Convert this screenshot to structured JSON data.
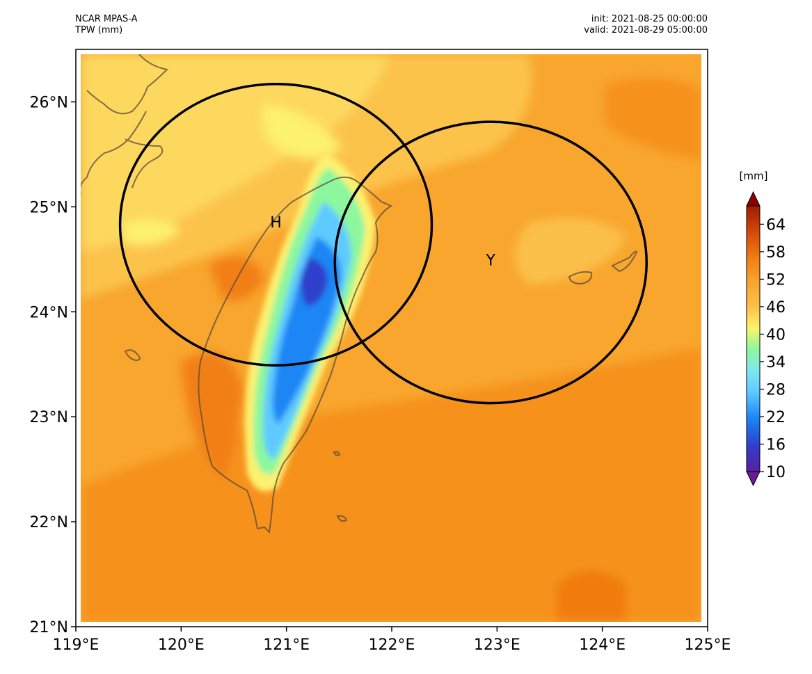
{
  "header": {
    "model": "NCAR MPAS-A",
    "variable": "TPW (mm)",
    "init": "init: 2021-08-25 00:00:00",
    "valid": "valid: 2021-08-29 05:00:00"
  },
  "chart_data": {
    "type": "heatmap",
    "projection": "plate-carree",
    "x_ticks": [
      "119°E",
      "120°E",
      "121°E",
      "122°E",
      "123°E",
      "124°E",
      "125°E"
    ],
    "y_ticks": [
      "26°N",
      "25°N",
      "24°N",
      "23°N",
      "22°N",
      "21°N"
    ],
    "xlim": [
      119,
      125
    ],
    "ylim": [
      21,
      26.5
    ],
    "colorbar": {
      "unit": "[mm]",
      "min": 10,
      "max": 68,
      "ticks": [
        "64",
        "58",
        "52",
        "46",
        "40",
        "34",
        "28",
        "22",
        "16",
        "10"
      ],
      "extend": "both",
      "colors": [
        "#5a1fa0",
        "#3b3fc4",
        "#2a5fe0",
        "#1a86f5",
        "#37a8ff",
        "#5fcaff",
        "#80e6f0",
        "#8cf79e",
        "#c9fa70",
        "#fdf36a",
        "#fbd85a",
        "#fbbf45",
        "#f9a52e",
        "#f7931d",
        "#f07c10",
        "#dd5a0a",
        "#c33a05",
        "#a01c02"
      ],
      "extend_min_color": "#6a1b9a",
      "extend_max_color": "#8b0000"
    },
    "circles": [
      {
        "label": "H",
        "center_lon": 120.9,
        "center_lat": 24.83,
        "radius_lon": 1.48,
        "radius_lat": 1.34
      },
      {
        "label": "Y",
        "center_lon": 122.94,
        "center_lat": 24.47,
        "radius_lon": 1.48,
        "radius_lat": 1.34
      }
    ]
  }
}
